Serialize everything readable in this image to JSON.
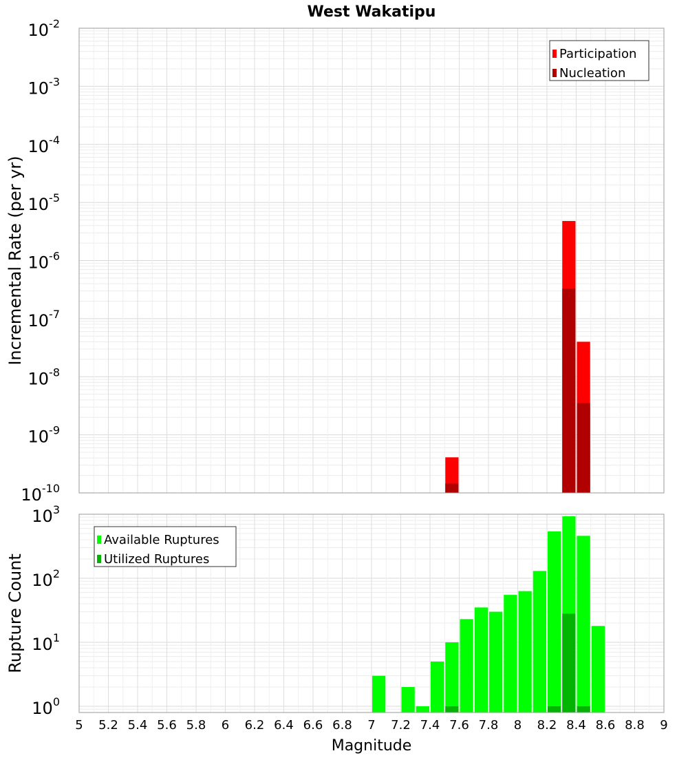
{
  "chart_data": [
    {
      "type": "bar",
      "title": "West Wakatipu",
      "ylabel": "Incremental Rate (per yr)",
      "xlabel": "",
      "xlim": [
        5,
        9
      ],
      "ylim": [
        1e-10,
        0.01
      ],
      "yscale": "log",
      "y_ticks": [
        {
          "base": "10",
          "exp": "-10",
          "value": 1e-10
        },
        {
          "base": "10",
          "exp": "-9",
          "value": 1e-09
        },
        {
          "base": "10",
          "exp": "-8",
          "value": 1e-08
        },
        {
          "base": "10",
          "exp": "-7",
          "value": 1e-07
        },
        {
          "base": "10",
          "exp": "-6",
          "value": 1e-06
        },
        {
          "base": "10",
          "exp": "-5",
          "value": 1e-05
        },
        {
          "base": "10",
          "exp": "-4",
          "value": 0.0001
        },
        {
          "base": "10",
          "exp": "-3",
          "value": 0.001
        },
        {
          "base": "10",
          "exp": "-2",
          "value": 0.01
        }
      ],
      "grid": true,
      "legend_position": "top-right",
      "bar_width": 0.1,
      "series": [
        {
          "name": "Participation",
          "color": "#ff0000",
          "points": [
            {
              "x": 7.55,
              "y": 4.1e-10
            },
            {
              "x": 8.35,
              "y": 4.8e-06
            },
            {
              "x": 8.45,
              "y": 4e-08
            }
          ]
        },
        {
          "name": "Nucleation",
          "color": "#b00000",
          "points": [
            {
              "x": 7.55,
              "y": 1.45e-10
            },
            {
              "x": 8.35,
              "y": 3.3e-07
            },
            {
              "x": 8.45,
              "y": 3.5e-09
            }
          ]
        }
      ]
    },
    {
      "type": "bar",
      "title": "",
      "ylabel": "Rupture Count",
      "xlabel": "Magnitude",
      "xlim": [
        5,
        9
      ],
      "ylim": [
        0.8,
        1000
      ],
      "yscale": "log",
      "y_ticks": [
        {
          "base": "10",
          "exp": "0",
          "value": 1
        },
        {
          "base": "10",
          "exp": "1",
          "value": 10
        },
        {
          "base": "10",
          "exp": "2",
          "value": 100
        },
        {
          "base": "10",
          "exp": "3",
          "value": 1000
        }
      ],
      "x_ticks": [
        "5",
        "5.2",
        "5.4",
        "5.6",
        "5.8",
        "6",
        "6.2",
        "6.4",
        "6.6",
        "6.8",
        "7",
        "7.2",
        "7.4",
        "7.6",
        "7.8",
        "8",
        "8.2",
        "8.4",
        "8.6",
        "8.8",
        "9"
      ],
      "grid": true,
      "legend_position": "top-left",
      "bar_width": 0.1,
      "series": [
        {
          "name": "Available Ruptures",
          "color": "#00ff00",
          "points": [
            {
              "x": 7.05,
              "y": 3
            },
            {
              "x": 7.25,
              "y": 2
            },
            {
              "x": 7.35,
              "y": 1
            },
            {
              "x": 7.45,
              "y": 5
            },
            {
              "x": 7.55,
              "y": 10
            },
            {
              "x": 7.65,
              "y": 23
            },
            {
              "x": 7.75,
              "y": 35
            },
            {
              "x": 7.85,
              "y": 30
            },
            {
              "x": 7.95,
              "y": 55
            },
            {
              "x": 8.05,
              "y": 63
            },
            {
              "x": 8.15,
              "y": 130
            },
            {
              "x": 8.25,
              "y": 540
            },
            {
              "x": 8.35,
              "y": 930
            },
            {
              "x": 8.45,
              "y": 460
            },
            {
              "x": 8.55,
              "y": 18
            }
          ]
        },
        {
          "name": "Utilized Ruptures",
          "color": "#00b400",
          "points": [
            {
              "x": 7.55,
              "y": 1
            },
            {
              "x": 8.25,
              "y": 1
            },
            {
              "x": 8.35,
              "y": 28
            },
            {
              "x": 8.45,
              "y": 1
            }
          ]
        }
      ]
    }
  ]
}
